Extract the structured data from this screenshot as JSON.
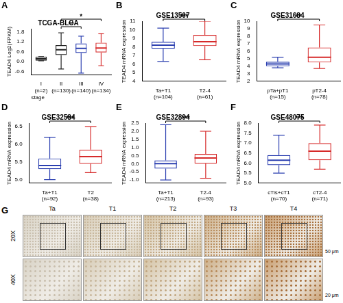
{
  "chart_data": [
    {
      "panel": "A",
      "type": "box",
      "title": "TCGA-BLCA",
      "ylabel": "TEAD4 Log2(FPKM)",
      "xlabel": "stage",
      "categories": [
        "I\n(n=2)",
        "II\n(n=130)",
        "III\n(n=140)",
        "IV\n(n=134)"
      ],
      "values": [
        {
          "min": 0.05,
          "q1": 0.05,
          "median": 0.17,
          "q3": 0.3,
          "max": 0.3
        },
        {
          "min": -0.45,
          "q1": 0.4,
          "median": 0.72,
          "q3": 1.0,
          "max": 1.75
        },
        {
          "min": -0.7,
          "q1": 0.52,
          "median": 0.8,
          "q3": 1.1,
          "max": 1.55
        },
        {
          "min": -0.25,
          "q1": 0.55,
          "median": 0.82,
          "q3": 1.15,
          "max": 1.7
        }
      ],
      "colors": [
        "#222222",
        "#222222",
        "#2b3fb0",
        "#d62b2b"
      ],
      "ylim": [
        -0.8,
        2.0
      ],
      "yticks": [
        -0.6,
        {
          "value": 0,
          "label": "0.0"
        },
        0.6,
        1.2,
        1.8
      ],
      "annotations": [
        {
          "text": "**",
          "between": [
            "II\n(n=130)",
            "III\n(n=140)"
          ]
        },
        {
          "text": "*",
          "between": [
            "II\n(n=130)",
            "IV\n(n=134)"
          ]
        }
      ],
      "grid": false
    },
    {
      "panel": "B",
      "type": "box",
      "title": "GSE13507",
      "ylabel": "TEAD4 mRNA expression",
      "categories": [
        "Ta+T1\n(n=104)",
        "T2-4\n(n=61)"
      ],
      "values": [
        {
          "min": 6.3,
          "q1": 7.8,
          "median": 8.2,
          "q3": 8.6,
          "max": 10.2
        },
        {
          "min": 6.5,
          "q1": 8.1,
          "median": 8.6,
          "q3": 9.4,
          "max": 11
        }
      ],
      "colors": [
        "#2b3fb0",
        "#d62b2b"
      ],
      "ylim": [
        4,
        11
      ],
      "yticks": [
        4,
        5,
        6,
        7,
        8,
        9,
        10,
        11
      ],
      "annotations": [
        {
          "text": "***",
          "between": [
            "Ta+T1\n(n=104)",
            "T2-4\n(n=61)"
          ]
        }
      ],
      "grid": false
    },
    {
      "panel": "C",
      "type": "box",
      "title": "GSE31684",
      "ylabel": "TEAD4 mRNA expression",
      "categories": [
        "pTa+pT1\n(n=15)",
        "pT2-4\n(n=78)"
      ],
      "values": [
        {
          "min": 3.8,
          "q1": 4.0,
          "median": 4.3,
          "q3": 4.6,
          "max": 5.2
        },
        {
          "min": 3.7,
          "q1": 4.5,
          "median": 5.2,
          "q3": 6.5,
          "max": 9.5
        }
      ],
      "colors": [
        "#2b3fb0",
        "#d62b2b"
      ],
      "ylim": [
        2,
        10
      ],
      "yticks": [
        2,
        3,
        4,
        5,
        6,
        7,
        8,
        9,
        10
      ],
      "annotations": [
        {
          "text": "**",
          "between": [
            "pTa+pT1\n(n=15)",
            "pT2-4\n(n=78)"
          ]
        }
      ],
      "grid": false
    },
    {
      "panel": "D",
      "type": "box",
      "title": "GSE32584",
      "ylabel": "TEAD4 mRNA expression",
      "categories": [
        "Ta+T1\n(n=92)",
        "T2\n(n=38)"
      ],
      "values": [
        {
          "min": 5.0,
          "q1": 5.3,
          "median": 5.4,
          "q3": 5.6,
          "max": 6.2
        },
        {
          "min": 5.2,
          "q1": 5.45,
          "median": 5.65,
          "q3": 5.85,
          "max": 6.5
        }
      ],
      "colors": [
        "#2b3fb0",
        "#d62b2b"
      ],
      "ylim": [
        4.9,
        6.6
      ],
      "yticks": [
        {
          "value": 5,
          "label": "5.0"
        },
        5.5,
        {
          "value": 6,
          "label": "6.0"
        },
        6.5
      ],
      "annotations": [
        {
          "text": "***",
          "between": [
            "Ta+T1\n(n=92)",
            "T2\n(n=38)"
          ]
        }
      ],
      "grid": false
    },
    {
      "panel": "E",
      "type": "box",
      "title": "GSE32894",
      "ylabel": "TEAD4 mRNA expression",
      "categories": [
        "Ta+T1\n(n=213)",
        "T2-4\n(n=93)"
      ],
      "values": [
        {
          "min": -1.0,
          "q1": -0.3,
          "median": 0.0,
          "q3": 0.2,
          "max": 2.4
        },
        {
          "min": -0.9,
          "q1": 0.0,
          "median": 0.35,
          "q3": 0.6,
          "max": 2.0
        }
      ],
      "colors": [
        "#2b3fb0",
        "#d62b2b"
      ],
      "ylim": [
        -1.2,
        2.5
      ],
      "yticks": [
        {
          "value": -1,
          "label": "-1.0"
        },
        -0.5,
        {
          "value": 0,
          "label": "0.0"
        },
        0.5,
        {
          "value": 1,
          "label": "1.0"
        },
        1.5,
        {
          "value": 2,
          "label": "2.0"
        },
        2.5
      ],
      "annotations": [
        {
          "text": "***",
          "between": [
            "Ta+T1\n(n=213)",
            "T2-4\n(n=93)"
          ]
        }
      ],
      "grid": false
    },
    {
      "panel": "F",
      "type": "box",
      "title": "GSE48075",
      "ylabel": "TEAD4 mRNA expression",
      "categories": [
        "cTis+cT1\n(n=70)",
        "cT2-4\n(n=71)"
      ],
      "values": [
        {
          "min": 5.5,
          "q1": 5.9,
          "median": 6.15,
          "q3": 6.4,
          "max": 7.4
        },
        {
          "min": 5.7,
          "q1": 6.15,
          "median": 6.6,
          "q3": 7.0,
          "max": 7.9
        }
      ],
      "colors": [
        "#2b3fb0",
        "#d62b2b"
      ],
      "ylim": [
        5,
        8
      ],
      "yticks": [
        {
          "value": 5,
          "label": "5.0"
        },
        5.5,
        {
          "value": 6,
          "label": "6.0"
        },
        6.5,
        {
          "value": 7,
          "label": "7.0"
        },
        7.5,
        {
          "value": 8,
          "label": "8.0"
        }
      ],
      "annotations": [
        {
          "text": "***",
          "between": [
            "cTis+cT1\n(n=70)",
            "cT2-4\n(n=71)"
          ]
        }
      ],
      "grid": false
    }
  ],
  "image_panel": {
    "panel": "G",
    "columns": [
      "Ta",
      "T1",
      "T2",
      "T3",
      "T4"
    ],
    "rows": [
      "20X",
      "40X"
    ],
    "scale_bars": [
      "50 μm",
      "20 μm"
    ]
  }
}
